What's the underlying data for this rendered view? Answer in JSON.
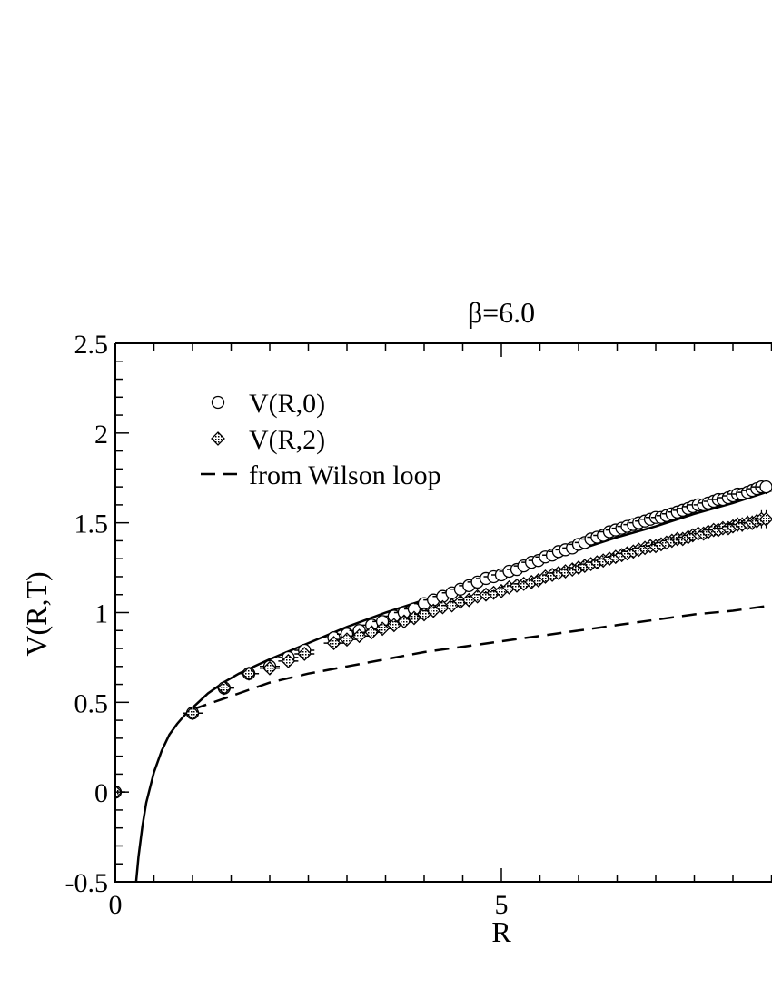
{
  "chart_data": {
    "type": "scatter",
    "title": "β=6.0",
    "xlabel": "R",
    "ylabel": "V(R,T)",
    "xlim": [
      0,
      8.5
    ],
    "ylim": [
      -0.5,
      2.5
    ],
    "x_ticks": [
      0,
      5
    ],
    "x_tick_labels": [
      "0",
      "5"
    ],
    "y_ticks": [
      -0.5,
      0,
      0.5,
      1,
      1.5,
      2,
      2.5
    ],
    "y_tick_labels": [
      "-0.5",
      "0",
      "0.5",
      "1",
      "1.5",
      "2",
      "2.5"
    ],
    "grid": false,
    "legend": "upper-left",
    "series": [
      {
        "name": "V(R,0)",
        "marker": "open-circle",
        "x": [
          0,
          1,
          1.41,
          1.73,
          2,
          2.24,
          2.45,
          2.83,
          3,
          3.16,
          3.32,
          3.46,
          3.61,
          3.74,
          3.87,
          4,
          4.12,
          4.24,
          4.36,
          4.47,
          4.58,
          4.69,
          4.8,
          4.9,
          5,
          5.1,
          5.2,
          5.29,
          5.39,
          5.48,
          5.57,
          5.66,
          5.74,
          5.83,
          5.92,
          6,
          6.08,
          6.16,
          6.24,
          6.32,
          6.4,
          6.48,
          6.56,
          6.63,
          6.71,
          6.78,
          6.86,
          6.93,
          7,
          7.07,
          7.14,
          7.21,
          7.28,
          7.35,
          7.42,
          7.48,
          7.55,
          7.62,
          7.68,
          7.75,
          7.81,
          7.87,
          7.94,
          8,
          8.06,
          8.12,
          8.19,
          8.25,
          8.31,
          8.37,
          8.43
        ],
        "y": [
          0,
          0.44,
          0.58,
          0.66,
          0.7,
          0.75,
          0.79,
          0.86,
          0.88,
          0.9,
          0.93,
          0.95,
          0.98,
          1.0,
          1.02,
          1.05,
          1.07,
          1.09,
          1.11,
          1.13,
          1.15,
          1.17,
          1.19,
          1.2,
          1.21,
          1.23,
          1.24,
          1.26,
          1.28,
          1.29,
          1.31,
          1.32,
          1.34,
          1.35,
          1.36,
          1.38,
          1.39,
          1.41,
          1.42,
          1.43,
          1.45,
          1.46,
          1.47,
          1.48,
          1.49,
          1.5,
          1.51,
          1.52,
          1.53,
          1.53,
          1.54,
          1.55,
          1.56,
          1.57,
          1.58,
          1.59,
          1.6,
          1.6,
          1.61,
          1.62,
          1.63,
          1.63,
          1.64,
          1.65,
          1.66,
          1.66,
          1.67,
          1.68,
          1.69,
          1.7,
          1.7
        ],
        "err": [
          0.01,
          0.01,
          0.01,
          0.01,
          0.01,
          0.01,
          0.01,
          0.01,
          0.01,
          0.01,
          0.01,
          0.01,
          0.01,
          0.01,
          0.01,
          0.01,
          0.01,
          0.01,
          0.01,
          0.01,
          0.01,
          0.01,
          0.01,
          0.01,
          0.01,
          0.01,
          0.01,
          0.01,
          0.01,
          0.01,
          0.01,
          0.01,
          0.01,
          0.01,
          0.01,
          0.01,
          0.01,
          0.01,
          0.01,
          0.01,
          0.01,
          0.01,
          0.01,
          0.01,
          0.01,
          0.01,
          0.01,
          0.01,
          0.01,
          0.01,
          0.01,
          0.01,
          0.01,
          0.01,
          0.01,
          0.01,
          0.01,
          0.01,
          0.01,
          0.01,
          0.01,
          0.01,
          0.01,
          0.01,
          0.02,
          0.02,
          0.02,
          0.02,
          0.02,
          0.03,
          0.03
        ]
      },
      {
        "name": "V(R,2)",
        "marker": "dotted-diamond",
        "x": [
          0,
          1,
          1.41,
          1.73,
          2,
          2.24,
          2.45,
          2.83,
          3,
          3.16,
          3.32,
          3.46,
          3.61,
          3.74,
          3.87,
          4,
          4.12,
          4.24,
          4.36,
          4.47,
          4.58,
          4.69,
          4.8,
          4.9,
          5,
          5.1,
          5.2,
          5.29,
          5.39,
          5.48,
          5.57,
          5.66,
          5.74,
          5.83,
          5.92,
          6,
          6.08,
          6.16,
          6.24,
          6.32,
          6.4,
          6.48,
          6.56,
          6.63,
          6.71,
          6.78,
          6.86,
          6.93,
          7,
          7.07,
          7.14,
          7.21,
          7.28,
          7.35,
          7.42,
          7.48,
          7.55,
          7.62,
          7.68,
          7.75,
          7.81,
          7.87,
          7.94,
          8,
          8.06,
          8.12,
          8.19,
          8.25,
          8.31,
          8.37,
          8.43
        ],
        "y": [
          0,
          0.44,
          0.58,
          0.66,
          0.69,
          0.73,
          0.77,
          0.83,
          0.85,
          0.87,
          0.89,
          0.91,
          0.93,
          0.95,
          0.97,
          0.99,
          1.01,
          1.03,
          1.04,
          1.06,
          1.07,
          1.09,
          1.1,
          1.11,
          1.12,
          1.14,
          1.15,
          1.16,
          1.17,
          1.18,
          1.2,
          1.21,
          1.22,
          1.23,
          1.24,
          1.25,
          1.26,
          1.27,
          1.28,
          1.29,
          1.3,
          1.31,
          1.32,
          1.33,
          1.34,
          1.35,
          1.36,
          1.37,
          1.37,
          1.38,
          1.39,
          1.4,
          1.41,
          1.41,
          1.42,
          1.43,
          1.44,
          1.44,
          1.45,
          1.46,
          1.46,
          1.47,
          1.47,
          1.48,
          1.49,
          1.49,
          1.5,
          1.5,
          1.51,
          1.52,
          1.52
        ],
        "err": [
          0.01,
          0.01,
          0.01,
          0.01,
          0.01,
          0.01,
          0.01,
          0.01,
          0.01,
          0.01,
          0.01,
          0.01,
          0.01,
          0.01,
          0.01,
          0.01,
          0.01,
          0.01,
          0.01,
          0.01,
          0.01,
          0.01,
          0.01,
          0.01,
          0.01,
          0.01,
          0.01,
          0.01,
          0.01,
          0.01,
          0.01,
          0.01,
          0.01,
          0.01,
          0.01,
          0.01,
          0.01,
          0.01,
          0.01,
          0.01,
          0.01,
          0.01,
          0.01,
          0.01,
          0.01,
          0.01,
          0.01,
          0.01,
          0.01,
          0.01,
          0.01,
          0.01,
          0.01,
          0.01,
          0.02,
          0.02,
          0.02,
          0.02,
          0.02,
          0.02,
          0.02,
          0.02,
          0.02,
          0.02,
          0.03,
          0.03,
          0.03,
          0.03,
          0.03,
          0.04,
          0.04
        ]
      }
    ],
    "curves": [
      {
        "name": "",
        "style": "solid",
        "x": [
          0.27,
          0.3,
          0.35,
          0.4,
          0.5,
          0.6,
          0.7,
          0.8,
          0.9,
          1.0,
          1.2,
          1.4,
          1.6,
          1.8,
          2.0,
          2.5,
          3.0,
          3.5,
          4.0,
          4.5,
          5.0,
          5.5,
          6.0,
          6.5,
          7.0,
          7.5,
          8.0,
          8.5
        ],
        "y": [
          -0.5,
          -0.36,
          -0.19,
          -0.06,
          0.11,
          0.23,
          0.32,
          0.38,
          0.43,
          0.47,
          0.55,
          0.61,
          0.66,
          0.7,
          0.74,
          0.83,
          0.92,
          1.0,
          1.07,
          1.14,
          1.21,
          1.28,
          1.35,
          1.42,
          1.48,
          1.55,
          1.61,
          1.68
        ]
      },
      {
        "name": "from Wilson loop",
        "style": "dashed",
        "x": [
          1.0,
          1.2,
          1.4,
          1.6,
          1.8,
          2.0,
          2.5,
          3.0,
          3.5,
          4.0,
          4.5,
          5.0,
          5.5,
          6.0,
          6.5,
          7.0,
          7.5,
          8.0,
          8.5
        ],
        "y": [
          0.46,
          0.49,
          0.52,
          0.55,
          0.58,
          0.61,
          0.66,
          0.7,
          0.74,
          0.78,
          0.81,
          0.84,
          0.87,
          0.9,
          0.93,
          0.96,
          0.99,
          1.01,
          1.04
        ]
      }
    ]
  }
}
